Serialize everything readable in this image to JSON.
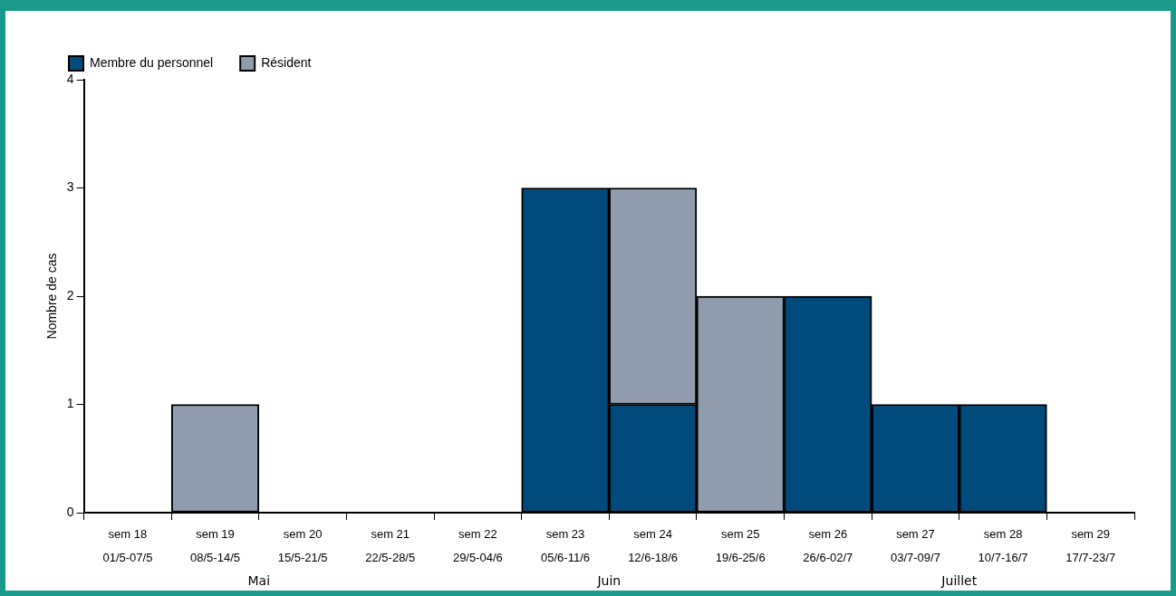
{
  "chart_data": {
    "type": "bar",
    "stacked": true,
    "ylabel": "Nombre de cas",
    "categories": [
      "sem 18\n01/5-07/5",
      "sem 19\n08/5-14/5",
      "sem 20\n15/5-21/5",
      "sem 21\n22/5-28/5",
      "sem 22\n29/5-04/6",
      "sem 23\n05/6-11/6",
      "sem 24\n12/6-18/6",
      "sem 25\n19/6-25/6",
      "sem 26\n26/6-02/7",
      "sem 27\n03/7-09/7",
      "sem 28\n10/7-16/7",
      "sem 29\n17/7-23/7"
    ],
    "series": [
      {
        "name": "Membre du personnel",
        "color": "#004a7c",
        "values": [
          0,
          0,
          0,
          0,
          0,
          3,
          1,
          0,
          2,
          1,
          1,
          0
        ]
      },
      {
        "name": "Résident",
        "color": "#919dae",
        "values": [
          0,
          1,
          0,
          0,
          0,
          0,
          2,
          2,
          0,
          0,
          0,
          0
        ]
      }
    ],
    "ylim": [
      0,
      4
    ],
    "yticks": [
      0,
      1,
      2,
      3,
      4
    ],
    "grid": false,
    "legend": "top left",
    "annotations": [
      "Mai",
      "Juin",
      "Juillet"
    ]
  }
}
